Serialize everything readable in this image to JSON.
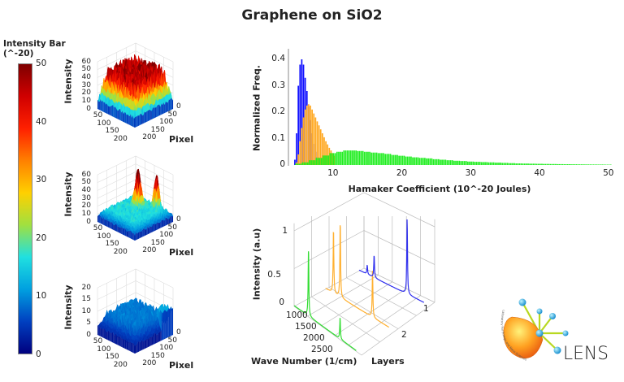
{
  "title": "Graphene on SiO2",
  "colorbar": {
    "label_line1": "Intensity Bar",
    "label_line2": "(^-20)",
    "range": [
      0,
      50
    ],
    "ticks": [
      "50",
      "40",
      "30",
      "20",
      "10",
      "0"
    ],
    "colors": [
      "#00007f",
      "#0040c0",
      "#00a0e0",
      "#20e0e0",
      "#a0e040",
      "#ffd000",
      "#ff8000",
      "#ff2000",
      "#d00000",
      "#7f0000"
    ]
  },
  "chart_data": [
    {
      "type": "surface3d",
      "ylabel": "Intensity",
      "xlabel": "Pixel",
      "zlim": [
        0,
        60
      ],
      "z_ticks": [
        "0",
        "10",
        "20",
        "30",
        "40",
        "50",
        "60"
      ],
      "pixel_ticks_left": [
        "50",
        "100",
        "150",
        "200"
      ],
      "pixel_ticks_right": [
        "0",
        "50",
        "100",
        "150",
        "200"
      ],
      "description_level": "high"
    },
    {
      "type": "surface3d",
      "ylabel": "Intensity",
      "xlabel": "Pixel",
      "zlim": [
        0,
        60
      ],
      "z_ticks": [
        "0",
        "10",
        "20",
        "30",
        "40",
        "50",
        "60"
      ],
      "pixel_ticks_left": [
        "50",
        "100",
        "150",
        "200"
      ],
      "pixel_ticks_right": [
        "0",
        "50",
        "100",
        "150",
        "200"
      ],
      "description_level": "peaks"
    },
    {
      "type": "surface3d",
      "ylabel": "Intensity",
      "xlabel": "Pixel",
      "zlim": [
        0,
        20
      ],
      "z_ticks": [
        "0",
        "5",
        "10",
        "15",
        "20"
      ],
      "pixel_ticks_left": [
        "50",
        "100",
        "150",
        "200"
      ],
      "pixel_ticks_right": [
        "0",
        "50",
        "100",
        "150",
        "200"
      ],
      "description_level": "low"
    },
    {
      "type": "bar",
      "xlabel": "Hamaker Coefficient (10^-20 Joules)",
      "ylabel": "Normalized Freq.",
      "xlim": [
        3.5,
        50
      ],
      "ylim": [
        0,
        0.42
      ],
      "x_ticks": [
        "10",
        "20",
        "30",
        "40",
        "50"
      ],
      "y_ticks": [
        "0",
        "0.1",
        "0.2",
        "0.3",
        "0.4"
      ],
      "series": [
        {
          "color": "#1010ff",
          "bin_width": 0.25,
          "x_start": 4.5,
          "values": [
            0.02,
            0.12,
            0.3,
            0.38,
            0.4,
            0.38,
            0.33,
            0.28,
            0.22,
            0.17,
            0.12,
            0.08,
            0.05,
            0.03,
            0.015,
            0.005
          ]
        },
        {
          "color": "#ffa820",
          "bin_width": 0.25,
          "x_start": 4.75,
          "values": [
            0.01,
            0.04,
            0.09,
            0.14,
            0.18,
            0.21,
            0.225,
            0.23,
            0.225,
            0.21,
            0.195,
            0.18,
            0.165,
            0.15,
            0.135,
            0.12,
            0.105,
            0.09,
            0.078,
            0.065,
            0.055,
            0.045,
            0.035
          ]
        },
        {
          "color": "#22ee22",
          "bin_width": 1,
          "x_start": 5,
          "values": [
            0.005,
            0.01,
            0.018,
            0.027,
            0.036,
            0.045,
            0.05,
            0.055,
            0.055,
            0.053,
            0.05,
            0.047,
            0.045,
            0.042,
            0.038,
            0.035,
            0.032,
            0.029,
            0.027,
            0.025,
            0.022,
            0.02,
            0.018,
            0.016,
            0.015,
            0.013,
            0.012,
            0.011,
            0.01,
            0.009,
            0.008,
            0.007,
            0.006,
            0.0055,
            0.005,
            0.0045,
            0.004,
            0.0037,
            0.0033,
            0.003,
            0.0027,
            0.0025,
            0.0022,
            0.002,
            0.0018,
            0.0015
          ]
        }
      ]
    },
    {
      "type": "line3d",
      "xlabel": "Wave Number (1/cm)",
      "ylabel": "Layers",
      "zlabel": "Intensity (a.u)",
      "x_range": [
        1080,
        3240
      ],
      "x_ticks": [
        "1000",
        "1500",
        "2000",
        "2500"
      ],
      "z_ticks": [
        "0",
        "0.5",
        "1"
      ],
      "layer_ticks": [
        "1",
        "2"
      ],
      "series": [
        {
          "layer": 3,
          "color": "#33dd33",
          "peaks": [
            [
              1580,
              0.9
            ],
            [
              2680,
              0.28
            ]
          ]
        },
        {
          "layer": 2,
          "color": "#ffb030",
          "peaks": [
            [
              1350,
              0.85
            ],
            [
              1580,
              1.0
            ],
            [
              2680,
              0.62
            ]
          ]
        },
        {
          "layer": 1,
          "color": "#3030ee",
          "peaks": [
            [
              1350,
              0.12
            ],
            [
              1580,
              0.3
            ],
            [
              2680,
              1.0
            ]
          ]
        }
      ]
    }
  ],
  "logo": {
    "text": "LENS",
    "arc_text": "Laboratory For Energy and Nano Sciences"
  }
}
